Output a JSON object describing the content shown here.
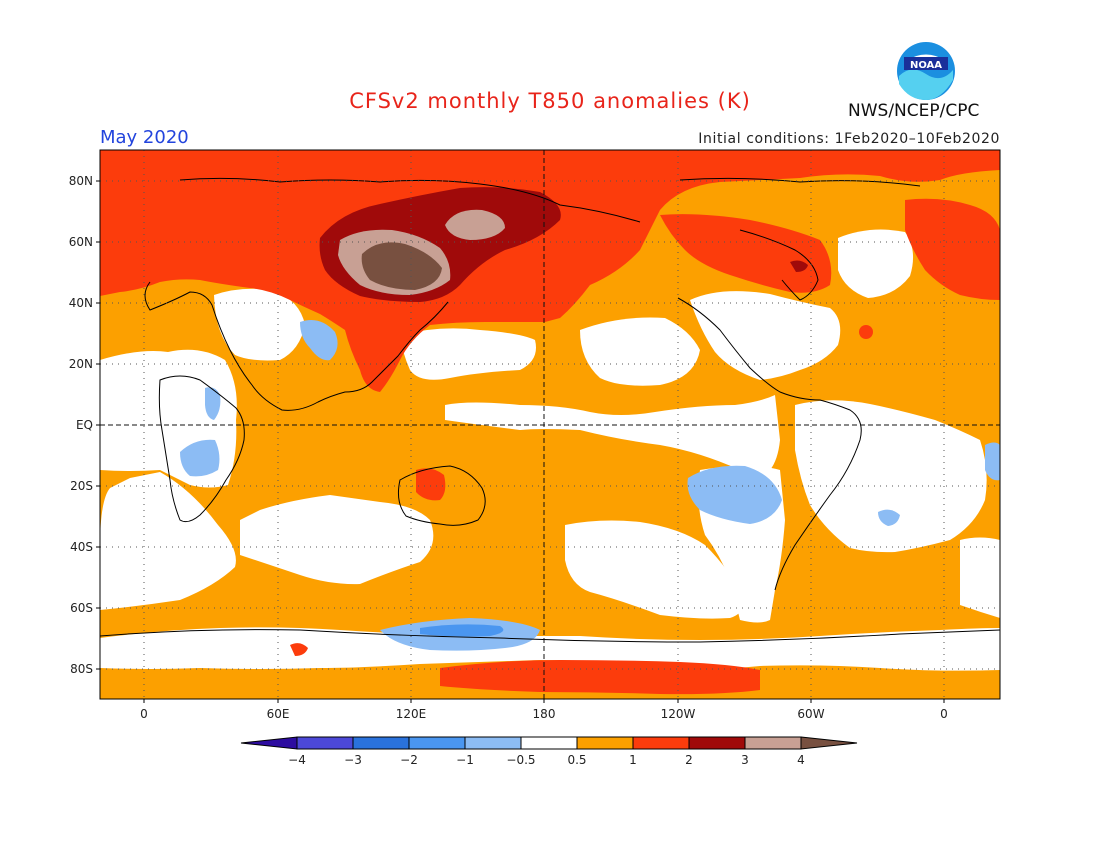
{
  "header": {
    "title": "CFSv2 monthly T850 anomalies (K)",
    "month": "May 2020",
    "initial_conditions": "Initial conditions: 1Feb2020–10Feb2020",
    "agency": "NWS/NCEP/CPC",
    "logo_icon": "noaa-logo-icon",
    "logo_text": "NOAA"
  },
  "map": {
    "lat_ticks": [
      "80N",
      "60N",
      "40N",
      "20N",
      "EQ",
      "20S",
      "40S",
      "60S",
      "80S"
    ],
    "lon_ticks": [
      "0",
      "60E",
      "120E",
      "180",
      "120W",
      "60W",
      "0"
    ]
  },
  "legend": {
    "labels": [
      "−4",
      "−3",
      "−2",
      "−1",
      "−0.5",
      "0.5",
      "1",
      "2",
      "3",
      "4"
    ],
    "colors": [
      "#2d0ca0",
      "#4c48d8",
      "#2a72dc",
      "#4a96f0",
      "#8cbcf4",
      "#ffffff",
      "#fca000",
      "#fc3c0c",
      "#a00a0a",
      "#c8a094",
      "#785040"
    ]
  },
  "colors": {
    "title": "#e8241a",
    "month": "#2244dd",
    "orange": "#fca000",
    "red_orange": "#fc3c0c",
    "dark_red": "#a00a0a",
    "tan": "#c8a094",
    "brown": "#785040",
    "light_blue": "#8cbcf4",
    "blue": "#4a96f0"
  }
}
